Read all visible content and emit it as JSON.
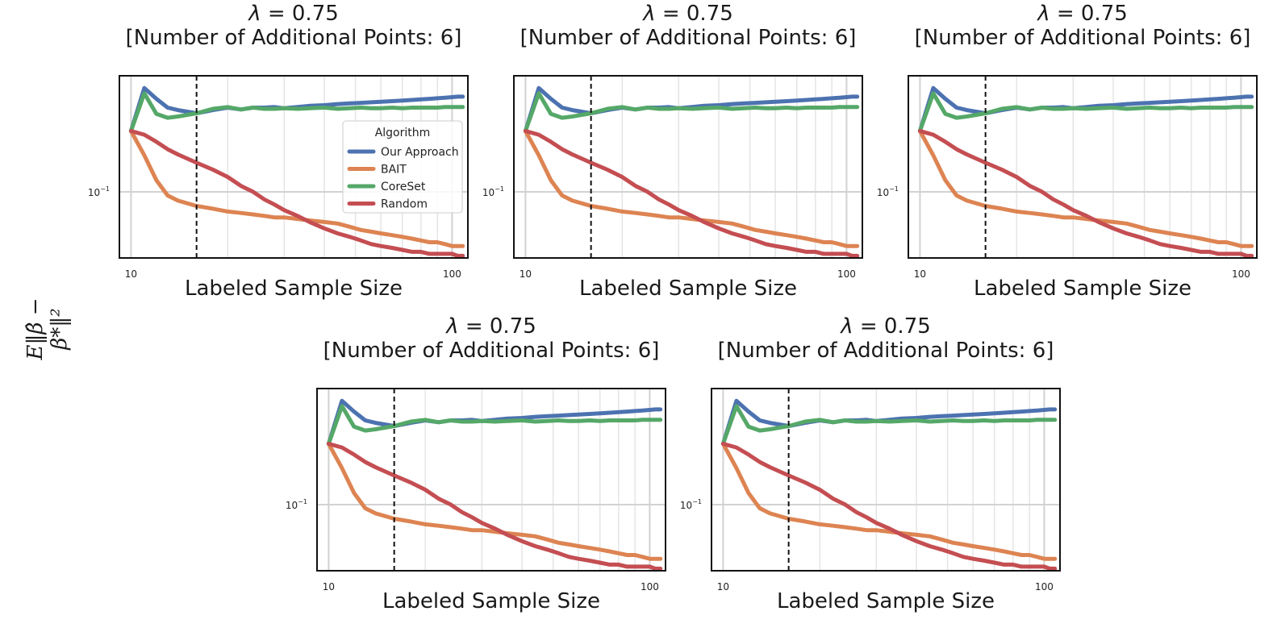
{
  "ylabel": "E‖β̂ − β*‖²",
  "legend": {
    "title": "Algorithm",
    "placement": "right",
    "entries": [
      "Our Approach",
      "BAIT",
      "CoreSet",
      "Random"
    ]
  },
  "chart_data": [
    {
      "type": "line",
      "title_symbol": "λ",
      "title_value": "= 0.75",
      "subtitle": "[Number of Additional Points: 6]",
      "xlabel": "Labeled Sample Size",
      "xscale": "log",
      "yscale": "log",
      "xlim": [
        9.2,
        112
      ],
      "ylim": [
        0.058,
        0.26
      ],
      "grid": true,
      "xticks": [
        {
          "value": 10,
          "label": "10"
        },
        {
          "value": 100,
          "label": "100"
        }
      ],
      "yticks": [
        {
          "value": 0.1,
          "label": "10",
          "exp": "−1"
        }
      ],
      "vline_x": 16,
      "legend": true,
      "x": [
        10,
        11,
        12,
        13,
        14,
        16,
        18,
        20,
        22,
        24,
        26,
        28,
        30,
        33,
        36,
        40,
        44,
        48,
        52,
        56,
        60,
        65,
        70,
        75,
        80,
        85,
        90,
        95,
        100,
        104,
        108
      ],
      "series": [
        {
          "name": "Our Approach",
          "color": "#4C72B0",
          "values": [
            0.165,
            0.235,
            0.215,
            0.2,
            0.196,
            0.191,
            0.196,
            0.2,
            0.197,
            0.2,
            0.2,
            0.201,
            0.199,
            0.201,
            0.203,
            0.204,
            0.206,
            0.207,
            0.208,
            0.209,
            0.21,
            0.211,
            0.212,
            0.213,
            0.214,
            0.215,
            0.216,
            0.217,
            0.218,
            0.219,
            0.219
          ]
        },
        {
          "name": "BAIT",
          "color": "#DD8452",
          "values": [
            0.165,
            0.135,
            0.11,
            0.097,
            0.093,
            0.089,
            0.087,
            0.085,
            0.084,
            0.083,
            0.082,
            0.081,
            0.081,
            0.08,
            0.079,
            0.078,
            0.077,
            0.075,
            0.073,
            0.072,
            0.071,
            0.07,
            0.069,
            0.068,
            0.067,
            0.066,
            0.066,
            0.065,
            0.064,
            0.064,
            0.064
          ]
        },
        {
          "name": "CoreSet",
          "color": "#55A868",
          "values": [
            0.165,
            0.225,
            0.19,
            0.184,
            0.186,
            0.191,
            0.198,
            0.201,
            0.197,
            0.2,
            0.198,
            0.198,
            0.199,
            0.198,
            0.199,
            0.2,
            0.198,
            0.199,
            0.2,
            0.199,
            0.199,
            0.2,
            0.199,
            0.2,
            0.2,
            0.2,
            0.2,
            0.201,
            0.201,
            0.201,
            0.201
          ]
        },
        {
          "name": "Random",
          "color": "#C44E52",
          "values": [
            0.165,
            0.16,
            0.151,
            0.142,
            0.136,
            0.127,
            0.12,
            0.113,
            0.105,
            0.1,
            0.094,
            0.09,
            0.086,
            0.082,
            0.078,
            0.074,
            0.071,
            0.069,
            0.067,
            0.065,
            0.064,
            0.063,
            0.062,
            0.061,
            0.061,
            0.06,
            0.06,
            0.06,
            0.06,
            0.059,
            0.059
          ]
        }
      ]
    },
    {
      "type": "line",
      "title_symbol": "λ",
      "title_value": "= 0.75",
      "subtitle": "[Number of Additional Points: 6]",
      "xlabel": "Labeled Sample Size",
      "xscale": "log",
      "yscale": "log",
      "xlim": [
        9.2,
        112
      ],
      "ylim": [
        0.058,
        0.26
      ],
      "grid": true,
      "xticks": [
        {
          "value": 10,
          "label": "10"
        },
        {
          "value": 100,
          "label": "100"
        }
      ],
      "yticks": [
        {
          "value": 0.1,
          "label": "10",
          "exp": "−1"
        }
      ],
      "vline_x": 16,
      "legend": false,
      "x": [
        10,
        11,
        12,
        13,
        14,
        16,
        18,
        20,
        22,
        24,
        26,
        28,
        30,
        33,
        36,
        40,
        44,
        48,
        52,
        56,
        60,
        65,
        70,
        75,
        80,
        85,
        90,
        95,
        100,
        104,
        108
      ],
      "series": [
        {
          "name": "Our Approach",
          "color": "#4C72B0",
          "values": [
            0.165,
            0.235,
            0.215,
            0.2,
            0.196,
            0.191,
            0.196,
            0.2,
            0.197,
            0.2,
            0.2,
            0.201,
            0.199,
            0.201,
            0.203,
            0.204,
            0.206,
            0.207,
            0.208,
            0.209,
            0.21,
            0.211,
            0.212,
            0.213,
            0.214,
            0.215,
            0.216,
            0.217,
            0.218,
            0.219,
            0.219
          ]
        },
        {
          "name": "BAIT",
          "color": "#DD8452",
          "values": [
            0.165,
            0.135,
            0.11,
            0.097,
            0.093,
            0.089,
            0.087,
            0.085,
            0.084,
            0.083,
            0.082,
            0.081,
            0.081,
            0.08,
            0.079,
            0.078,
            0.077,
            0.075,
            0.073,
            0.072,
            0.071,
            0.07,
            0.069,
            0.068,
            0.067,
            0.066,
            0.066,
            0.065,
            0.064,
            0.064,
            0.064
          ]
        },
        {
          "name": "CoreSet",
          "color": "#55A868",
          "values": [
            0.165,
            0.225,
            0.19,
            0.184,
            0.186,
            0.191,
            0.198,
            0.201,
            0.197,
            0.2,
            0.198,
            0.198,
            0.199,
            0.198,
            0.199,
            0.2,
            0.198,
            0.199,
            0.2,
            0.199,
            0.199,
            0.2,
            0.199,
            0.2,
            0.2,
            0.2,
            0.2,
            0.201,
            0.201,
            0.201,
            0.201
          ]
        },
        {
          "name": "Random",
          "color": "#C44E52",
          "values": [
            0.165,
            0.16,
            0.151,
            0.142,
            0.136,
            0.127,
            0.12,
            0.113,
            0.105,
            0.1,
            0.094,
            0.09,
            0.086,
            0.082,
            0.078,
            0.074,
            0.071,
            0.069,
            0.067,
            0.065,
            0.064,
            0.063,
            0.062,
            0.061,
            0.061,
            0.06,
            0.06,
            0.06,
            0.06,
            0.059,
            0.059
          ]
        }
      ]
    },
    {
      "type": "line",
      "title_symbol": "λ",
      "title_value": "= 0.75",
      "subtitle": "[Number of Additional Points: 6]",
      "xlabel": "Labeled Sample Size",
      "xscale": "log",
      "yscale": "log",
      "xlim": [
        9.2,
        112
      ],
      "ylim": [
        0.058,
        0.26
      ],
      "grid": true,
      "xticks": [
        {
          "value": 10,
          "label": "10"
        },
        {
          "value": 100,
          "label": "100"
        }
      ],
      "yticks": [
        {
          "value": 0.1,
          "label": "10",
          "exp": "−1"
        }
      ],
      "vline_x": 16,
      "legend": false,
      "x": [
        10,
        11,
        12,
        13,
        14,
        16,
        18,
        20,
        22,
        24,
        26,
        28,
        30,
        33,
        36,
        40,
        44,
        48,
        52,
        56,
        60,
        65,
        70,
        75,
        80,
        85,
        90,
        95,
        100,
        104,
        108
      ],
      "series": [
        {
          "name": "Our Approach",
          "color": "#4C72B0",
          "values": [
            0.165,
            0.235,
            0.215,
            0.2,
            0.196,
            0.191,
            0.196,
            0.2,
            0.197,
            0.2,
            0.2,
            0.201,
            0.199,
            0.201,
            0.203,
            0.204,
            0.206,
            0.207,
            0.208,
            0.209,
            0.21,
            0.211,
            0.212,
            0.213,
            0.214,
            0.215,
            0.216,
            0.217,
            0.218,
            0.219,
            0.219
          ]
        },
        {
          "name": "BAIT",
          "color": "#DD8452",
          "values": [
            0.165,
            0.135,
            0.11,
            0.097,
            0.093,
            0.089,
            0.087,
            0.085,
            0.084,
            0.083,
            0.082,
            0.081,
            0.081,
            0.08,
            0.079,
            0.078,
            0.077,
            0.075,
            0.073,
            0.072,
            0.071,
            0.07,
            0.069,
            0.068,
            0.067,
            0.066,
            0.066,
            0.065,
            0.064,
            0.064,
            0.064
          ]
        },
        {
          "name": "CoreSet",
          "color": "#55A868",
          "values": [
            0.165,
            0.225,
            0.19,
            0.184,
            0.186,
            0.191,
            0.198,
            0.201,
            0.197,
            0.2,
            0.198,
            0.198,
            0.199,
            0.198,
            0.199,
            0.2,
            0.198,
            0.199,
            0.2,
            0.199,
            0.199,
            0.2,
            0.199,
            0.2,
            0.2,
            0.2,
            0.2,
            0.201,
            0.201,
            0.201,
            0.201
          ]
        },
        {
          "name": "Random",
          "color": "#C44E52",
          "values": [
            0.165,
            0.16,
            0.151,
            0.142,
            0.136,
            0.127,
            0.12,
            0.113,
            0.105,
            0.1,
            0.094,
            0.09,
            0.086,
            0.082,
            0.078,
            0.074,
            0.071,
            0.069,
            0.067,
            0.065,
            0.064,
            0.063,
            0.062,
            0.061,
            0.061,
            0.06,
            0.06,
            0.06,
            0.06,
            0.059,
            0.059
          ]
        }
      ]
    },
    {
      "type": "line",
      "title_symbol": "λ",
      "title_value": "= 0.75",
      "subtitle": "[Number of Additional Points: 6]",
      "xlabel": "Labeled Sample Size",
      "xscale": "log",
      "yscale": "log",
      "xlim": [
        9.2,
        112
      ],
      "ylim": [
        0.058,
        0.26
      ],
      "grid": true,
      "xticks": [
        {
          "value": 10,
          "label": "10"
        },
        {
          "value": 100,
          "label": "100"
        }
      ],
      "yticks": [
        {
          "value": 0.1,
          "label": "10",
          "exp": "−1"
        }
      ],
      "vline_x": 16,
      "legend": false,
      "x": [
        10,
        11,
        12,
        13,
        14,
        16,
        18,
        20,
        22,
        24,
        26,
        28,
        30,
        33,
        36,
        40,
        44,
        48,
        52,
        56,
        60,
        65,
        70,
        75,
        80,
        85,
        90,
        95,
        100,
        104,
        108
      ],
      "series": [
        {
          "name": "Our Approach",
          "color": "#4C72B0",
          "values": [
            0.165,
            0.235,
            0.215,
            0.2,
            0.196,
            0.191,
            0.196,
            0.2,
            0.197,
            0.2,
            0.2,
            0.201,
            0.199,
            0.201,
            0.203,
            0.204,
            0.206,
            0.207,
            0.208,
            0.209,
            0.21,
            0.211,
            0.212,
            0.213,
            0.214,
            0.215,
            0.216,
            0.217,
            0.218,
            0.219,
            0.219
          ]
        },
        {
          "name": "BAIT",
          "color": "#DD8452",
          "values": [
            0.165,
            0.135,
            0.11,
            0.097,
            0.093,
            0.089,
            0.087,
            0.085,
            0.084,
            0.083,
            0.082,
            0.081,
            0.081,
            0.08,
            0.079,
            0.078,
            0.077,
            0.075,
            0.073,
            0.072,
            0.071,
            0.07,
            0.069,
            0.068,
            0.067,
            0.066,
            0.066,
            0.065,
            0.064,
            0.064,
            0.064
          ]
        },
        {
          "name": "CoreSet",
          "color": "#55A868",
          "values": [
            0.165,
            0.225,
            0.19,
            0.184,
            0.186,
            0.191,
            0.198,
            0.201,
            0.197,
            0.2,
            0.198,
            0.198,
            0.199,
            0.198,
            0.199,
            0.2,
            0.198,
            0.199,
            0.2,
            0.199,
            0.199,
            0.2,
            0.199,
            0.2,
            0.2,
            0.2,
            0.2,
            0.201,
            0.201,
            0.201,
            0.201
          ]
        },
        {
          "name": "Random",
          "color": "#C44E52",
          "values": [
            0.165,
            0.16,
            0.151,
            0.142,
            0.136,
            0.127,
            0.12,
            0.113,
            0.105,
            0.1,
            0.094,
            0.09,
            0.086,
            0.082,
            0.078,
            0.074,
            0.071,
            0.069,
            0.067,
            0.065,
            0.064,
            0.063,
            0.062,
            0.061,
            0.061,
            0.06,
            0.06,
            0.06,
            0.06,
            0.059,
            0.059
          ]
        }
      ]
    },
    {
      "type": "line",
      "title_symbol": "λ",
      "title_value": "= 0.75",
      "subtitle": "[Number of Additional Points: 6]",
      "xlabel": "Labeled Sample Size",
      "xscale": "log",
      "yscale": "log",
      "xlim": [
        9.2,
        112
      ],
      "ylim": [
        0.058,
        0.26
      ],
      "grid": true,
      "xticks": [
        {
          "value": 10,
          "label": "10"
        },
        {
          "value": 100,
          "label": "100"
        }
      ],
      "yticks": [
        {
          "value": 0.1,
          "label": "10",
          "exp": "−1"
        }
      ],
      "vline_x": 16,
      "legend": false,
      "x": [
        10,
        11,
        12,
        13,
        14,
        16,
        18,
        20,
        22,
        24,
        26,
        28,
        30,
        33,
        36,
        40,
        44,
        48,
        52,
        56,
        60,
        65,
        70,
        75,
        80,
        85,
        90,
        95,
        100,
        104,
        108
      ],
      "series": [
        {
          "name": "Our Approach",
          "color": "#4C72B0",
          "values": [
            0.165,
            0.235,
            0.215,
            0.2,
            0.196,
            0.191,
            0.196,
            0.2,
            0.197,
            0.2,
            0.2,
            0.201,
            0.199,
            0.201,
            0.203,
            0.204,
            0.206,
            0.207,
            0.208,
            0.209,
            0.21,
            0.211,
            0.212,
            0.213,
            0.214,
            0.215,
            0.216,
            0.217,
            0.218,
            0.219,
            0.219
          ]
        },
        {
          "name": "BAIT",
          "color": "#DD8452",
          "values": [
            0.165,
            0.135,
            0.11,
            0.097,
            0.093,
            0.089,
            0.087,
            0.085,
            0.084,
            0.083,
            0.082,
            0.081,
            0.081,
            0.08,
            0.079,
            0.078,
            0.077,
            0.075,
            0.073,
            0.072,
            0.071,
            0.07,
            0.069,
            0.068,
            0.067,
            0.066,
            0.066,
            0.065,
            0.064,
            0.064,
            0.064
          ]
        },
        {
          "name": "CoreSet",
          "color": "#55A868",
          "values": [
            0.165,
            0.225,
            0.19,
            0.184,
            0.186,
            0.191,
            0.198,
            0.201,
            0.197,
            0.2,
            0.198,
            0.198,
            0.199,
            0.198,
            0.199,
            0.2,
            0.198,
            0.199,
            0.2,
            0.199,
            0.199,
            0.2,
            0.199,
            0.2,
            0.2,
            0.2,
            0.2,
            0.201,
            0.201,
            0.201,
            0.201
          ]
        },
        {
          "name": "Random",
          "color": "#C44E52",
          "values": [
            0.165,
            0.16,
            0.151,
            0.142,
            0.136,
            0.127,
            0.12,
            0.113,
            0.105,
            0.1,
            0.094,
            0.09,
            0.086,
            0.082,
            0.078,
            0.074,
            0.071,
            0.069,
            0.067,
            0.065,
            0.064,
            0.063,
            0.062,
            0.061,
            0.061,
            0.06,
            0.06,
            0.06,
            0.06,
            0.059,
            0.059
          ]
        }
      ]
    }
  ]
}
